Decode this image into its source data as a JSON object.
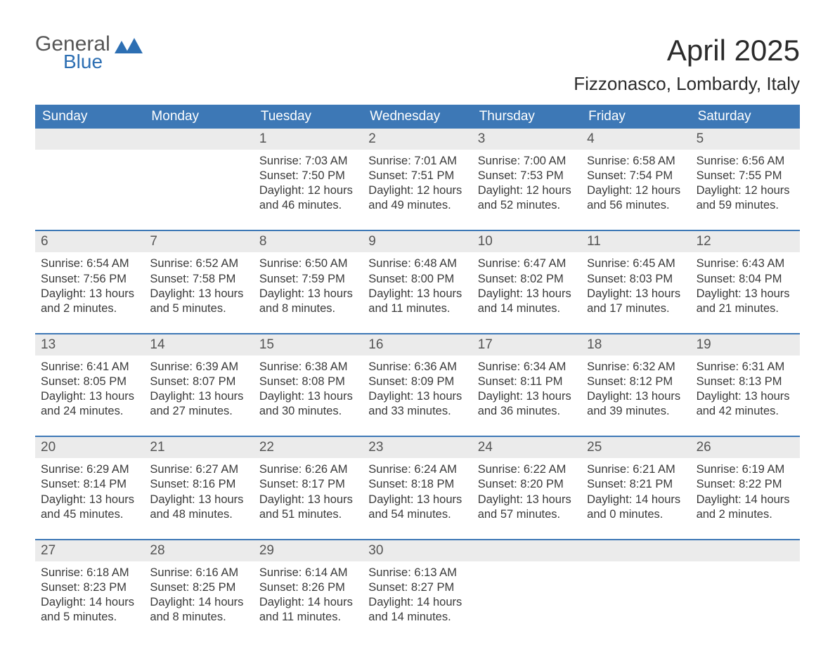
{
  "colors": {
    "header_bg": "#3d78b6",
    "header_text": "#ffffff",
    "strip_bg": "#ebebeb",
    "border": "#3d78b6",
    "body_text": "#3a3a3a",
    "logo_blue": "#2d6fb3",
    "logo_gray": "#555555"
  },
  "logo": {
    "word1": "General",
    "word2": "Blue"
  },
  "title": {
    "month": "April 2025",
    "location": "Fizzonasco, Lombardy, Italy"
  },
  "weekdays": [
    "Sunday",
    "Monday",
    "Tuesday",
    "Wednesday",
    "Thursday",
    "Friday",
    "Saturday"
  ],
  "weeks": [
    [
      null,
      null,
      {
        "n": "1",
        "sr": "Sunrise: 7:03 AM",
        "ss": "Sunset: 7:50 PM",
        "dl1": "Daylight: 12 hours",
        "dl2": "and 46 minutes."
      },
      {
        "n": "2",
        "sr": "Sunrise: 7:01 AM",
        "ss": "Sunset: 7:51 PM",
        "dl1": "Daylight: 12 hours",
        "dl2": "and 49 minutes."
      },
      {
        "n": "3",
        "sr": "Sunrise: 7:00 AM",
        "ss": "Sunset: 7:53 PM",
        "dl1": "Daylight: 12 hours",
        "dl2": "and 52 minutes."
      },
      {
        "n": "4",
        "sr": "Sunrise: 6:58 AM",
        "ss": "Sunset: 7:54 PM",
        "dl1": "Daylight: 12 hours",
        "dl2": "and 56 minutes."
      },
      {
        "n": "5",
        "sr": "Sunrise: 6:56 AM",
        "ss": "Sunset: 7:55 PM",
        "dl1": "Daylight: 12 hours",
        "dl2": "and 59 minutes."
      }
    ],
    [
      {
        "n": "6",
        "sr": "Sunrise: 6:54 AM",
        "ss": "Sunset: 7:56 PM",
        "dl1": "Daylight: 13 hours",
        "dl2": "and 2 minutes."
      },
      {
        "n": "7",
        "sr": "Sunrise: 6:52 AM",
        "ss": "Sunset: 7:58 PM",
        "dl1": "Daylight: 13 hours",
        "dl2": "and 5 minutes."
      },
      {
        "n": "8",
        "sr": "Sunrise: 6:50 AM",
        "ss": "Sunset: 7:59 PM",
        "dl1": "Daylight: 13 hours",
        "dl2": "and 8 minutes."
      },
      {
        "n": "9",
        "sr": "Sunrise: 6:48 AM",
        "ss": "Sunset: 8:00 PM",
        "dl1": "Daylight: 13 hours",
        "dl2": "and 11 minutes."
      },
      {
        "n": "10",
        "sr": "Sunrise: 6:47 AM",
        "ss": "Sunset: 8:02 PM",
        "dl1": "Daylight: 13 hours",
        "dl2": "and 14 minutes."
      },
      {
        "n": "11",
        "sr": "Sunrise: 6:45 AM",
        "ss": "Sunset: 8:03 PM",
        "dl1": "Daylight: 13 hours",
        "dl2": "and 17 minutes."
      },
      {
        "n": "12",
        "sr": "Sunrise: 6:43 AM",
        "ss": "Sunset: 8:04 PM",
        "dl1": "Daylight: 13 hours",
        "dl2": "and 21 minutes."
      }
    ],
    [
      {
        "n": "13",
        "sr": "Sunrise: 6:41 AM",
        "ss": "Sunset: 8:05 PM",
        "dl1": "Daylight: 13 hours",
        "dl2": "and 24 minutes."
      },
      {
        "n": "14",
        "sr": "Sunrise: 6:39 AM",
        "ss": "Sunset: 8:07 PM",
        "dl1": "Daylight: 13 hours",
        "dl2": "and 27 minutes."
      },
      {
        "n": "15",
        "sr": "Sunrise: 6:38 AM",
        "ss": "Sunset: 8:08 PM",
        "dl1": "Daylight: 13 hours",
        "dl2": "and 30 minutes."
      },
      {
        "n": "16",
        "sr": "Sunrise: 6:36 AM",
        "ss": "Sunset: 8:09 PM",
        "dl1": "Daylight: 13 hours",
        "dl2": "and 33 minutes."
      },
      {
        "n": "17",
        "sr": "Sunrise: 6:34 AM",
        "ss": "Sunset: 8:11 PM",
        "dl1": "Daylight: 13 hours",
        "dl2": "and 36 minutes."
      },
      {
        "n": "18",
        "sr": "Sunrise: 6:32 AM",
        "ss": "Sunset: 8:12 PM",
        "dl1": "Daylight: 13 hours",
        "dl2": "and 39 minutes."
      },
      {
        "n": "19",
        "sr": "Sunrise: 6:31 AM",
        "ss": "Sunset: 8:13 PM",
        "dl1": "Daylight: 13 hours",
        "dl2": "and 42 minutes."
      }
    ],
    [
      {
        "n": "20",
        "sr": "Sunrise: 6:29 AM",
        "ss": "Sunset: 8:14 PM",
        "dl1": "Daylight: 13 hours",
        "dl2": "and 45 minutes."
      },
      {
        "n": "21",
        "sr": "Sunrise: 6:27 AM",
        "ss": "Sunset: 8:16 PM",
        "dl1": "Daylight: 13 hours",
        "dl2": "and 48 minutes."
      },
      {
        "n": "22",
        "sr": "Sunrise: 6:26 AM",
        "ss": "Sunset: 8:17 PM",
        "dl1": "Daylight: 13 hours",
        "dl2": "and 51 minutes."
      },
      {
        "n": "23",
        "sr": "Sunrise: 6:24 AM",
        "ss": "Sunset: 8:18 PM",
        "dl1": "Daylight: 13 hours",
        "dl2": "and 54 minutes."
      },
      {
        "n": "24",
        "sr": "Sunrise: 6:22 AM",
        "ss": "Sunset: 8:20 PM",
        "dl1": "Daylight: 13 hours",
        "dl2": "and 57 minutes."
      },
      {
        "n": "25",
        "sr": "Sunrise: 6:21 AM",
        "ss": "Sunset: 8:21 PM",
        "dl1": "Daylight: 14 hours",
        "dl2": "and 0 minutes."
      },
      {
        "n": "26",
        "sr": "Sunrise: 6:19 AM",
        "ss": "Sunset: 8:22 PM",
        "dl1": "Daylight: 14 hours",
        "dl2": "and 2 minutes."
      }
    ],
    [
      {
        "n": "27",
        "sr": "Sunrise: 6:18 AM",
        "ss": "Sunset: 8:23 PM",
        "dl1": "Daylight: 14 hours",
        "dl2": "and 5 minutes."
      },
      {
        "n": "28",
        "sr": "Sunrise: 6:16 AM",
        "ss": "Sunset: 8:25 PM",
        "dl1": "Daylight: 14 hours",
        "dl2": "and 8 minutes."
      },
      {
        "n": "29",
        "sr": "Sunrise: 6:14 AM",
        "ss": "Sunset: 8:26 PM",
        "dl1": "Daylight: 14 hours",
        "dl2": "and 11 minutes."
      },
      {
        "n": "30",
        "sr": "Sunrise: 6:13 AM",
        "ss": "Sunset: 8:27 PM",
        "dl1": "Daylight: 14 hours",
        "dl2": "and 14 minutes."
      },
      null,
      null,
      null
    ]
  ]
}
